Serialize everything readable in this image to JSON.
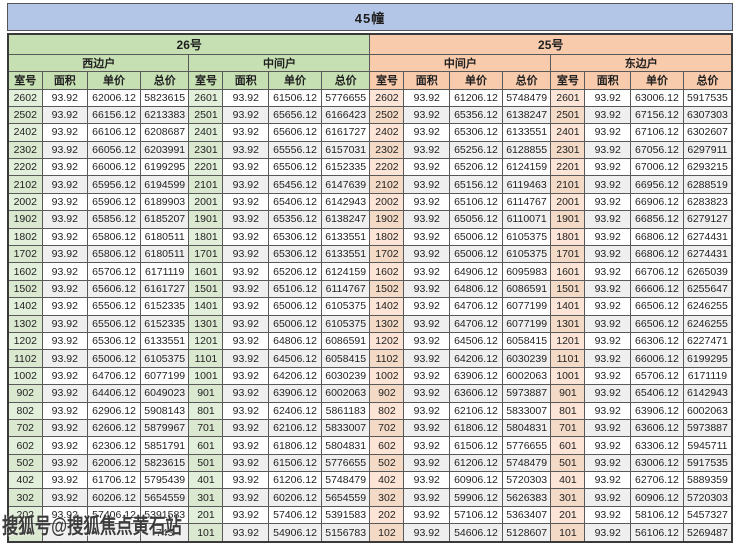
{
  "title": "45幢",
  "watermark": "搜狐号@搜狐焦点黄石站",
  "buildings": [
    {
      "label": "26号",
      "units": [
        {
          "label": "西边户"
        },
        {
          "label": "中间户"
        }
      ]
    },
    {
      "label": "25号",
      "units": [
        {
          "label": "中间户"
        },
        {
          "label": "东边户"
        }
      ]
    }
  ],
  "columns": [
    "室号",
    "面积",
    "单价",
    "总价"
  ],
  "colors": {
    "title_bg": "#b4c6e7",
    "green_header": "#c6e0b4",
    "green_room": "#e2efda",
    "orange_header": "#f8cbad",
    "orange_room": "#fce4d6",
    "stripe": "#efefef",
    "grid": "#595959"
  },
  "rows": [
    [
      "2602",
      "93.92",
      "62006.12",
      "5823615",
      "2601",
      "93.92",
      "61506.12",
      "5776655",
      "2602",
      "93.92",
      "61206.12",
      "5748479",
      "2601",
      "93.92",
      "63006.12",
      "5917535"
    ],
    [
      "2502",
      "93.92",
      "66156.12",
      "6213383",
      "2501",
      "93.92",
      "65656.12",
      "6166423",
      "2502",
      "93.92",
      "65356.12",
      "6138247",
      "2501",
      "93.92",
      "67156.12",
      "6307303"
    ],
    [
      "2402",
      "93.92",
      "66106.12",
      "6208687",
      "2401",
      "93.92",
      "65606.12",
      "6161727",
      "2402",
      "93.92",
      "65306.12",
      "6133551",
      "2401",
      "93.92",
      "67106.12",
      "6302607"
    ],
    [
      "2302",
      "93.92",
      "66056.12",
      "6203991",
      "2301",
      "93.92",
      "65556.12",
      "6157031",
      "2302",
      "93.92",
      "65256.12",
      "6128855",
      "2301",
      "93.92",
      "67056.12",
      "6297911"
    ],
    [
      "2202",
      "93.92",
      "66006.12",
      "6199295",
      "2201",
      "93.92",
      "65506.12",
      "6152335",
      "2202",
      "93.92",
      "65206.12",
      "6124159",
      "2201",
      "93.92",
      "67006.12",
      "6293215"
    ],
    [
      "2102",
      "93.92",
      "65956.12",
      "6194599",
      "2101",
      "93.92",
      "65456.12",
      "6147639",
      "2102",
      "93.92",
      "65156.12",
      "6119463",
      "2101",
      "93.92",
      "66956.12",
      "6288519"
    ],
    [
      "2002",
      "93.92",
      "65906.12",
      "6189903",
      "2001",
      "93.92",
      "65406.12",
      "6142943",
      "2002",
      "93.92",
      "65106.12",
      "6114767",
      "2001",
      "93.92",
      "66906.12",
      "6283823"
    ],
    [
      "1902",
      "93.92",
      "65856.12",
      "6185207",
      "1901",
      "93.92",
      "65356.12",
      "6138247",
      "1902",
      "93.92",
      "65056.12",
      "6110071",
      "1901",
      "93.92",
      "66856.12",
      "6279127"
    ],
    [
      "1802",
      "93.92",
      "65806.12",
      "6180511",
      "1801",
      "93.92",
      "65306.12",
      "6133551",
      "1802",
      "93.92",
      "65006.12",
      "6105375",
      "1801",
      "93.92",
      "66806.12",
      "6274431"
    ],
    [
      "1702",
      "93.92",
      "65806.12",
      "6180511",
      "1701",
      "93.92",
      "65306.12",
      "6133551",
      "1702",
      "93.92",
      "65006.12",
      "6105375",
      "1701",
      "93.92",
      "66806.12",
      "6274431"
    ],
    [
      "1602",
      "93.92",
      "65706.12",
      "6171119",
      "1601",
      "93.92",
      "65206.12",
      "6124159",
      "1602",
      "93.92",
      "64906.12",
      "6095983",
      "1601",
      "93.92",
      "66706.12",
      "6265039"
    ],
    [
      "1502",
      "93.92",
      "65606.12",
      "6161727",
      "1501",
      "93.92",
      "65106.12",
      "6114767",
      "1502",
      "93.92",
      "64806.12",
      "6086591",
      "1501",
      "93.92",
      "66606.12",
      "6255647"
    ],
    [
      "1402",
      "93.92",
      "65506.12",
      "6152335",
      "1401",
      "93.92",
      "65006.12",
      "6105375",
      "1402",
      "93.92",
      "64706.12",
      "6077199",
      "1401",
      "93.92",
      "66506.12",
      "6246255"
    ],
    [
      "1302",
      "93.92",
      "65506.12",
      "6152335",
      "1301",
      "93.92",
      "65006.12",
      "6105375",
      "1302",
      "93.92",
      "64706.12",
      "6077199",
      "1301",
      "93.92",
      "66506.12",
      "6246255"
    ],
    [
      "1202",
      "93.92",
      "65306.12",
      "6133551",
      "1201",
      "93.92",
      "64806.12",
      "6086591",
      "1202",
      "93.92",
      "64506.12",
      "6058415",
      "1201",
      "93.92",
      "66306.12",
      "6227471"
    ],
    [
      "1102",
      "93.92",
      "65006.12",
      "6105375",
      "1101",
      "93.92",
      "64506.12",
      "6058415",
      "1102",
      "93.92",
      "64206.12",
      "6030239",
      "1101",
      "93.92",
      "66006.12",
      "6199295"
    ],
    [
      "1002",
      "93.92",
      "64706.12",
      "6077199",
      "1001",
      "93.92",
      "64206.12",
      "6030239",
      "1002",
      "93.92",
      "63906.12",
      "6002063",
      "1001",
      "93.92",
      "65706.12",
      "6171119"
    ],
    [
      "902",
      "93.92",
      "64406.12",
      "6049023",
      "901",
      "93.92",
      "63906.12",
      "6002063",
      "902",
      "93.92",
      "63606.12",
      "5973887",
      "901",
      "93.92",
      "65406.12",
      "6142943"
    ],
    [
      "802",
      "93.92",
      "62906.12",
      "5908143",
      "801",
      "93.92",
      "62406.12",
      "5861183",
      "802",
      "93.92",
      "62106.12",
      "5833007",
      "801",
      "93.92",
      "63906.12",
      "6002063"
    ],
    [
      "702",
      "93.92",
      "62606.12",
      "5879967",
      "701",
      "93.92",
      "62106.12",
      "5833007",
      "702",
      "93.92",
      "61806.12",
      "5804831",
      "701",
      "93.92",
      "63606.12",
      "5973887"
    ],
    [
      "602",
      "93.92",
      "62306.12",
      "5851791",
      "601",
      "93.92",
      "61806.12",
      "5804831",
      "602",
      "93.92",
      "61506.12",
      "5776655",
      "601",
      "93.92",
      "63306.12",
      "5945711"
    ],
    [
      "502",
      "93.92",
      "62006.12",
      "5823615",
      "501",
      "93.92",
      "61506.12",
      "5776655",
      "502",
      "93.92",
      "61206.12",
      "5748479",
      "501",
      "93.92",
      "63006.12",
      "5917535"
    ],
    [
      "402",
      "93.92",
      "61706.12",
      "5795439",
      "401",
      "93.92",
      "61206.12",
      "5748479",
      "402",
      "93.92",
      "60906.12",
      "5720303",
      "401",
      "93.92",
      "62706.12",
      "5889359"
    ],
    [
      "302",
      "93.92",
      "60206.12",
      "5654559",
      "301",
      "93.92",
      "60206.12",
      "5654559",
      "302",
      "93.92",
      "59906.12",
      "5626383",
      "301",
      "93.92",
      "60906.12",
      "5720303"
    ],
    [
      "202",
      "93.92",
      "57406.12",
      "5391583",
      "201",
      "93.92",
      "57406.12",
      "5391583",
      "202",
      "93.92",
      "57106.12",
      "5363407",
      "201",
      "93.92",
      "58106.12",
      "5457327"
    ],
    [
      "",
      "",
      "",
      "743",
      "101",
      "93.92",
      "54906.12",
      "5156783",
      "102",
      "93.92",
      "54606.12",
      "5128607",
      "101",
      "93.92",
      "56106.12",
      "5269487"
    ]
  ]
}
